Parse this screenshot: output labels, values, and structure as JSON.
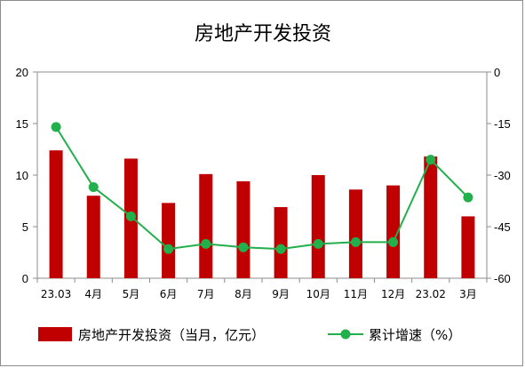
{
  "chart_data": {
    "type": "bar",
    "title": "房地产开发投资",
    "categories": [
      "23.03",
      "4月",
      "5月",
      "6月",
      "7月",
      "8月",
      "9月",
      "10月",
      "11月",
      "12月",
      "23.02",
      "3月"
    ],
    "series": [
      {
        "name": "房地产开发投资（当月，亿元）",
        "type": "bar",
        "axis": "left",
        "color": "#c00000",
        "values": [
          12.4,
          8.0,
          11.6,
          7.3,
          10.1,
          9.4,
          6.9,
          10.0,
          8.6,
          9.0,
          11.8,
          6.0
        ]
      },
      {
        "name": "累计增速（%）",
        "type": "line",
        "axis": "right",
        "color": "#21b04b",
        "values": [
          -16.0,
          -33.5,
          -42.0,
          -51.5,
          -50.0,
          -51.0,
          -51.5,
          -50.0,
          -49.5,
          -49.5,
          -25.5,
          -36.5
        ]
      }
    ],
    "ylim_left": [
      0,
      20
    ],
    "yticks_left": [
      "0",
      "5",
      "10",
      "15",
      "20"
    ],
    "ylim_right": [
      -60,
      0
    ],
    "yticks_right": [
      "-60",
      "-45",
      "-30",
      "-15",
      "0"
    ],
    "grid": false,
    "legend_position": "bottom"
  }
}
